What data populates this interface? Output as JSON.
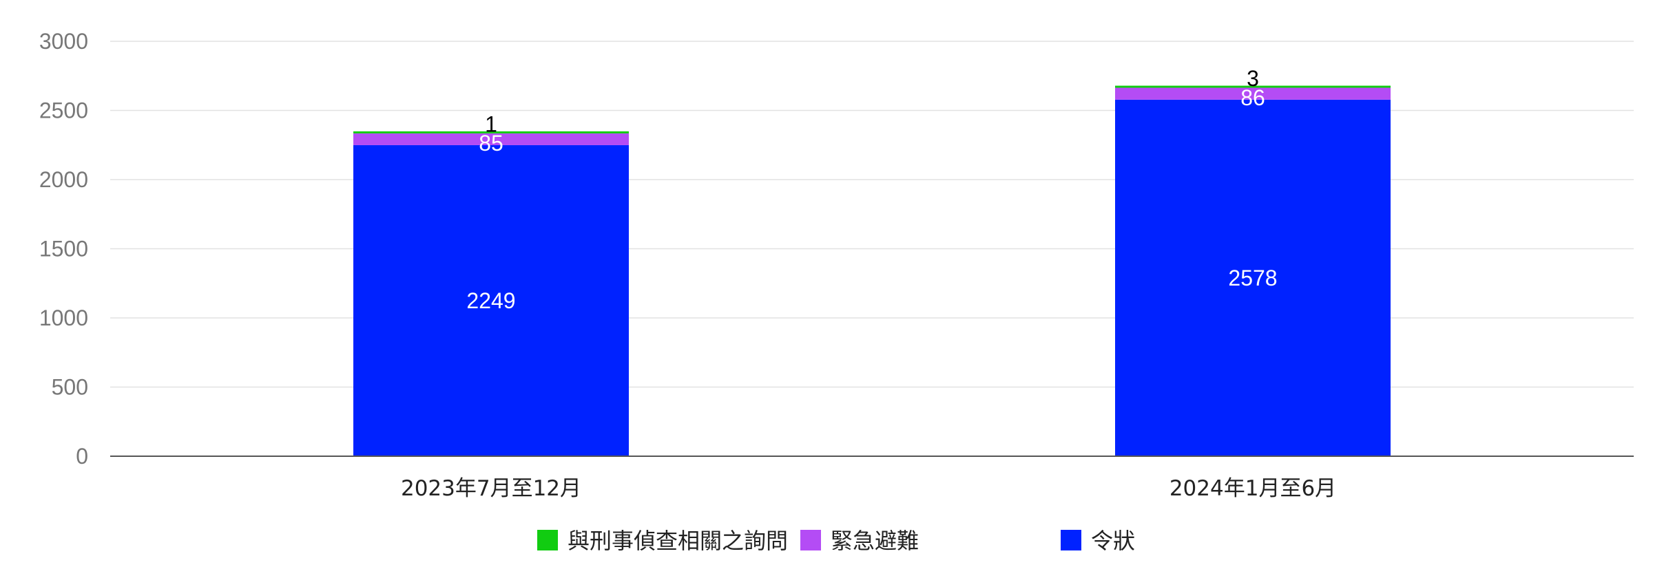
{
  "chart_data": {
    "type": "bar",
    "stacked": true,
    "categories": [
      "2023年7月至12月",
      "2024年1月至6月"
    ],
    "series": [
      {
        "name": "令狀",
        "values": [
          2249,
          2578
        ],
        "color": "#0022ff",
        "label_color": "#ffffff"
      },
      {
        "name": "緊急避難",
        "values": [
          85,
          86
        ],
        "color": "#b44cf5",
        "label_color": "#ffffff"
      },
      {
        "name": "與刑事偵查相關之詢問",
        "values": [
          1,
          3
        ],
        "color": "#11cc11",
        "label_color": "#000000"
      }
    ],
    "legend_order": [
      "與刑事偵查相關之詢問",
      "緊急避難",
      "令狀"
    ],
    "title": "",
    "xlabel": "",
    "ylabel": "",
    "ylim": [
      0,
      3000
    ],
    "yticks": [
      0,
      500,
      1000,
      1500,
      2000,
      2500,
      3000
    ],
    "ytick_labels": [
      "0",
      "500",
      "1000",
      "1500",
      "2000",
      "2500",
      "3000"
    ],
    "grid": true,
    "legend_position": "bottom"
  }
}
